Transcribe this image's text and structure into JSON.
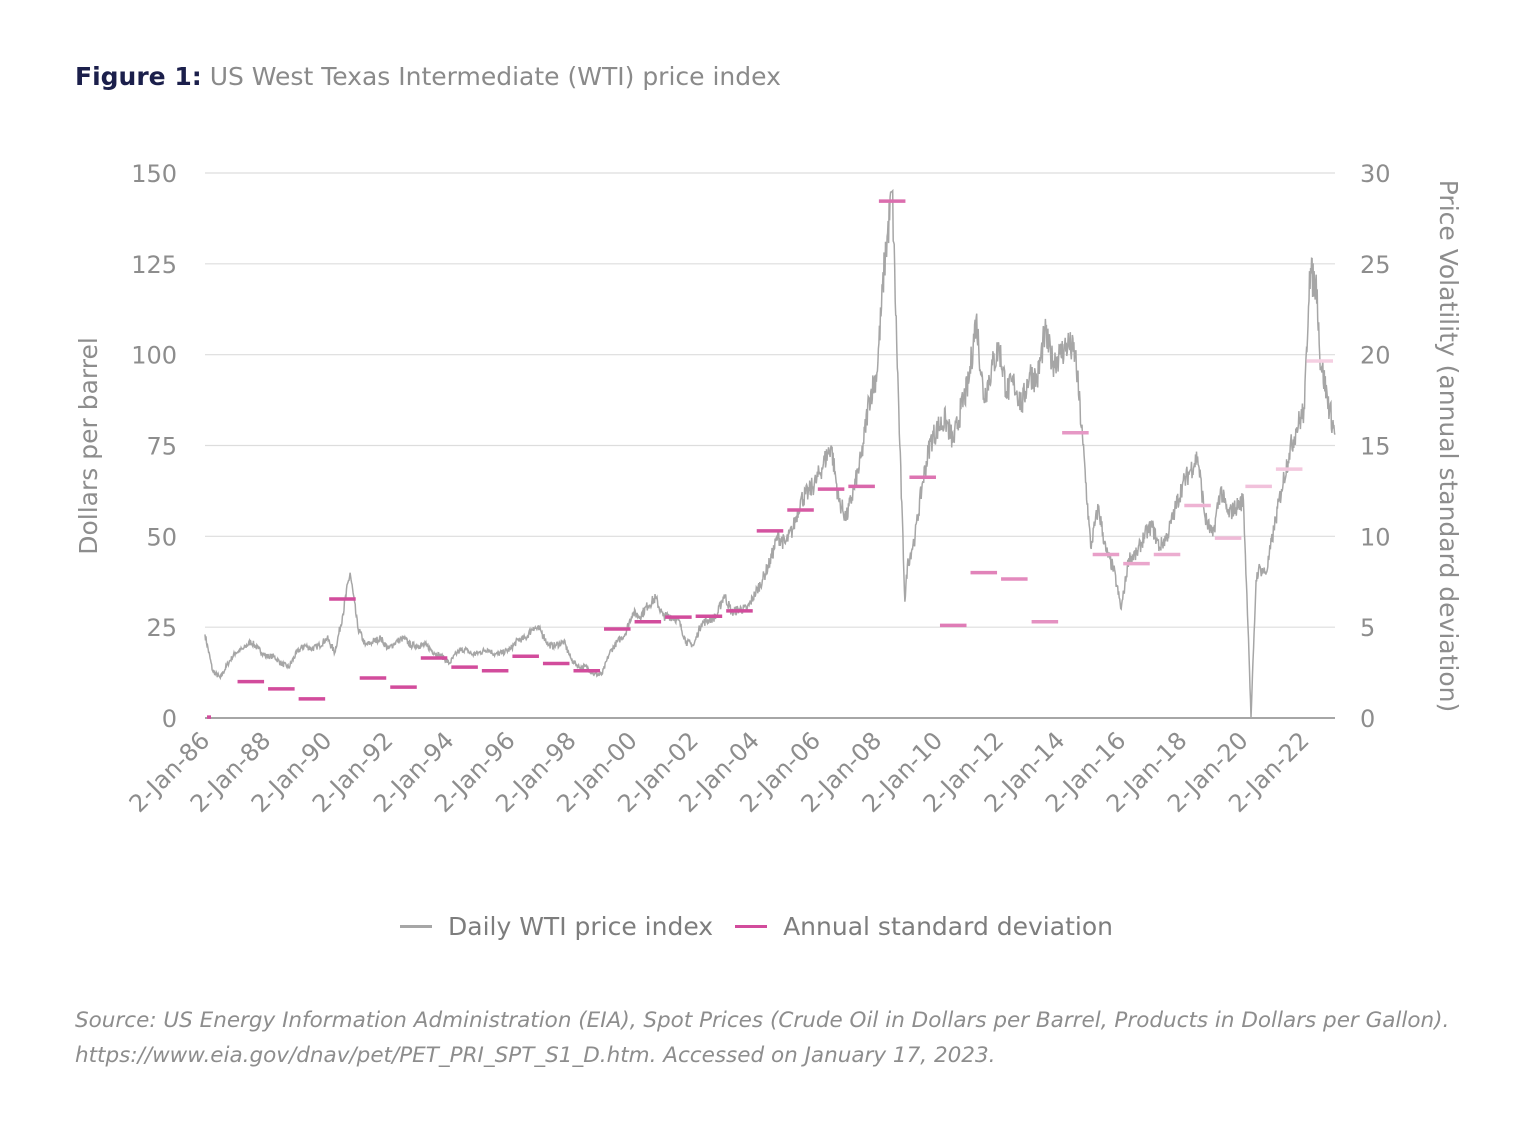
{
  "figure_label": "Figure 1:",
  "title": "US West Texas Intermediate (WTI) price index",
  "source": "Source: US Energy Information Administration (EIA), Spot Prices (Crude Oil in Dollars per Barrel, Products in Dollars per Gallon). https://www.eia.gov/dnav/pet/PET_PRI_SPT_S1_D.htm.  Accessed on January 17, 2023.",
  "chart_data": {
    "type": "line",
    "ylabel": "Dollars per barrel",
    "y2label": "Price Volatility (annual standard deviation)",
    "ylim": [
      0,
      150
    ],
    "y2lim": [
      0,
      30
    ],
    "yticks": [
      "0",
      "25",
      "50",
      "75",
      "100",
      "125",
      "150"
    ],
    "y2ticks": [
      "0",
      "5",
      "10",
      "15",
      "20",
      "25",
      "30"
    ],
    "xticks": [
      "2-Jan-86",
      "2-Jan-88",
      "2-Jan-90",
      "2-Jan-92",
      "2-Jan-94",
      "2-Jan-96",
      "2-Jan-98",
      "2-Jan-00",
      "2-Jan-02",
      "2-Jan-04",
      "2-Jan-06",
      "2-Jan-08",
      "2-Jan-10",
      "2-Jan-12",
      "2-Jan-14",
      "2-Jan-16",
      "2-Jan-18",
      "2-Jan-20",
      "2-Jan-22"
    ],
    "xlim": [
      "1986-01",
      "2023-01"
    ],
    "grid": true,
    "legend_position": "bottom",
    "colors": {
      "price": "#a6a6a6",
      "deviation_start": "#d24c9c",
      "deviation_end": "#f5cfe2",
      "grid": "#dddddd",
      "axis": "#a6a6a6"
    },
    "series": [
      {
        "name": "Daily WTI price index",
        "axis": "left",
        "dates": [
          "1986-01",
          "1986-04",
          "1986-07",
          "1986-10",
          "1987-01",
          "1987-04",
          "1987-07",
          "1987-10",
          "1988-01",
          "1988-04",
          "1988-07",
          "1988-10",
          "1989-01",
          "1989-04",
          "1989-07",
          "1989-10",
          "1990-01",
          "1990-04",
          "1990-07",
          "1990-10",
          "1991-01",
          "1991-04",
          "1991-07",
          "1991-10",
          "1992-01",
          "1992-04",
          "1992-07",
          "1992-10",
          "1993-01",
          "1993-04",
          "1993-07",
          "1993-10",
          "1994-01",
          "1994-04",
          "1994-07",
          "1994-10",
          "1995-01",
          "1995-04",
          "1995-07",
          "1995-10",
          "1996-01",
          "1996-04",
          "1996-07",
          "1996-10",
          "1997-01",
          "1997-04",
          "1997-07",
          "1997-10",
          "1998-01",
          "1998-04",
          "1998-07",
          "1998-10",
          "1999-01",
          "1999-04",
          "1999-07",
          "1999-10",
          "2000-01",
          "2000-04",
          "2000-07",
          "2000-10",
          "2001-01",
          "2001-04",
          "2001-07",
          "2001-10",
          "2002-01",
          "2002-04",
          "2002-07",
          "2002-10",
          "2003-01",
          "2003-04",
          "2003-07",
          "2003-10",
          "2004-01",
          "2004-04",
          "2004-07",
          "2004-10",
          "2005-01",
          "2005-04",
          "2005-07",
          "2005-10",
          "2006-01",
          "2006-04",
          "2006-07",
          "2006-10",
          "2007-01",
          "2007-04",
          "2007-07",
          "2007-10",
          "2008-01",
          "2008-04",
          "2008-07",
          "2008-10",
          "2008-12",
          "2009-01",
          "2009-04",
          "2009-07",
          "2009-10",
          "2010-01",
          "2010-04",
          "2010-07",
          "2010-10",
          "2011-01",
          "2011-04",
          "2011-07",
          "2011-10",
          "2012-01",
          "2012-04",
          "2012-07",
          "2012-10",
          "2013-01",
          "2013-04",
          "2013-07",
          "2013-10",
          "2014-01",
          "2014-04",
          "2014-07",
          "2014-10",
          "2015-01",
          "2015-04",
          "2015-07",
          "2015-10",
          "2016-01",
          "2016-04",
          "2016-07",
          "2016-10",
          "2017-01",
          "2017-04",
          "2017-07",
          "2017-10",
          "2018-01",
          "2018-04",
          "2018-07",
          "2018-10",
          "2019-01",
          "2019-04",
          "2019-07",
          "2019-10",
          "2020-01",
          "2020-03",
          "2020-04",
          "2020-06",
          "2020-07",
          "2020-10",
          "2021-01",
          "2021-04",
          "2021-07",
          "2021-10",
          "2022-01",
          "2022-03",
          "2022-06",
          "2022-07",
          "2022-10",
          "2023-01"
        ],
        "values": [
          23,
          13,
          11,
          15,
          18,
          19,
          21,
          19,
          17,
          17,
          15,
          14,
          18,
          20,
          19,
          20,
          22,
          18,
          28,
          40,
          25,
          20,
          21,
          22,
          19,
          21,
          22,
          20,
          20,
          20,
          18,
          17,
          15,
          18,
          19,
          17.5,
          18,
          19,
          17.5,
          18,
          19,
          21.5,
          22,
          25,
          24,
          20,
          20,
          21,
          16,
          14,
          14,
          12,
          12,
          18,
          21,
          23,
          29,
          28,
          31,
          33,
          28,
          28,
          27,
          21,
          20,
          26,
          27,
          28,
          34,
          29,
          30,
          30,
          34,
          38,
          43,
          50,
          48,
          52,
          60,
          62,
          65,
          70,
          75,
          60,
          55,
          63,
          72,
          88,
          95,
          125,
          145,
          75,
          32,
          42,
          50,
          65,
          76,
          80,
          82,
          76,
          85,
          92,
          110,
          88,
          96,
          102,
          90,
          92,
          86,
          95,
          93,
          106,
          98,
          100,
          103,
          100,
          75,
          47,
          58,
          46,
          41,
          30,
          44,
          45,
          50,
          53,
          47,
          50,
          57,
          64,
          68,
          72,
          55,
          50,
          63,
          56,
          58,
          60,
          22,
          0,
          38,
          41,
          40,
          52,
          63,
          73,
          80,
          85,
          123,
          118,
          100,
          88,
          78
        ]
      },
      {
        "name": "Annual standard deviation",
        "axis": "right",
        "years": [
          1986,
          1987,
          1988,
          1989,
          1990,
          1991,
          1992,
          1993,
          1994,
          1995,
          1996,
          1997,
          1998,
          1999,
          2000,
          2001,
          2002,
          2003,
          2004,
          2005,
          2006,
          2007,
          2008,
          2009,
          2010,
          2011,
          2012,
          2013,
          2014,
          2015,
          2016,
          2017,
          2018,
          2019,
          2020,
          2021,
          2022
        ],
        "values": [
          0.05,
          2.0,
          1.6,
          1.05,
          6.55,
          2.2,
          1.7,
          3.3,
          2.8,
          2.6,
          3.4,
          3.0,
          2.6,
          4.9,
          5.3,
          5.55,
          5.6,
          5.9,
          10.3,
          11.45,
          12.6,
          12.75,
          28.45,
          13.25,
          5.1,
          8.0,
          7.65,
          5.3,
          15.7,
          9.0,
          8.5,
          9.0,
          11.7,
          9.9,
          12.75,
          13.7,
          19.65
        ]
      }
    ]
  }
}
